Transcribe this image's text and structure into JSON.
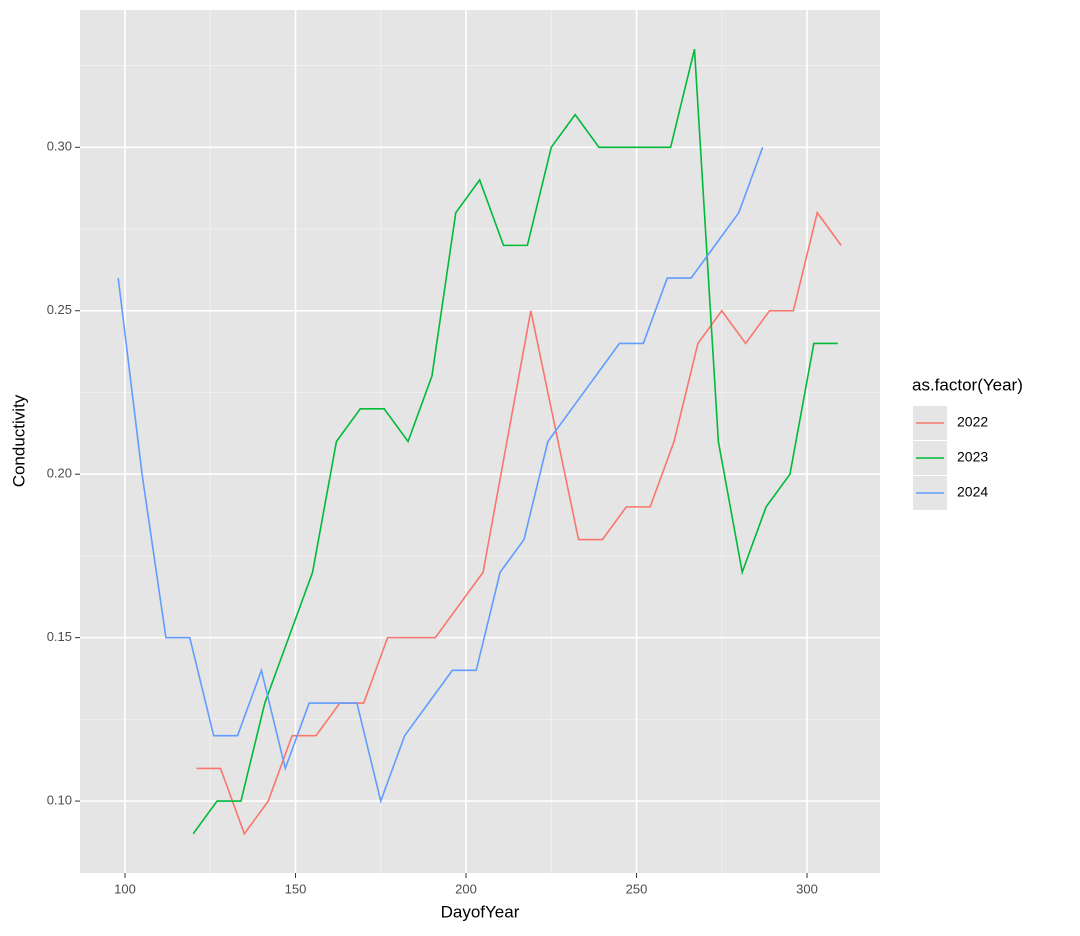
{
  "chart_data": {
    "type": "line",
    "x_label": "DayofYear",
    "y_label": "Conductivity",
    "legend_title": "as.factor(Year)",
    "legend_position": "right",
    "xlim": [
      86.8,
      321.4
    ],
    "ylim": [
      0.078,
      0.342
    ],
    "xticks": [
      100,
      150,
      200,
      250,
      300
    ],
    "yticks": [
      {
        "value": 0.1,
        "label": "0.10"
      },
      {
        "value": 0.15,
        "label": "0.15"
      },
      {
        "value": 0.2,
        "label": "0.20"
      },
      {
        "value": 0.25,
        "label": "0.25"
      },
      {
        "value": 0.3,
        "label": "0.30"
      }
    ],
    "xminor": [
      125,
      175,
      225,
      275
    ],
    "yminor": [
      0.125,
      0.175,
      0.225,
      0.275,
      0.325
    ],
    "grid": true,
    "series": [
      {
        "name": "2022",
        "color": "#f8766d",
        "x": [
          121,
          128,
          135,
          142,
          149,
          156,
          163,
          170,
          177,
          184,
          191,
          198,
          205,
          219,
          233,
          240,
          247,
          254,
          261,
          268,
          275,
          282,
          289,
          296,
          303,
          310
        ],
        "values": [
          0.11,
          0.11,
          0.09,
          0.1,
          0.12,
          0.12,
          0.13,
          0.13,
          0.15,
          0.15,
          0.15,
          0.16,
          0.17,
          0.25,
          0.18,
          0.18,
          0.19,
          0.19,
          0.21,
          0.24,
          0.25,
          0.24,
          0.25,
          0.25,
          0.28,
          0.27
        ]
      },
      {
        "name": "2023",
        "color": "#00ba38",
        "x": [
          120,
          127,
          134,
          141,
          148,
          155,
          162,
          169,
          176,
          183,
          190,
          197,
          204,
          211,
          218,
          225,
          232,
          239,
          246,
          253,
          260,
          267,
          274,
          281,
          288,
          295,
          302,
          309
        ],
        "values": [
          0.09,
          0.1,
          0.1,
          0.13,
          0.15,
          0.17,
          0.21,
          0.22,
          0.22,
          0.21,
          0.23,
          0.28,
          0.29,
          0.27,
          0.27,
          0.3,
          0.31,
          0.3,
          0.3,
          0.3,
          0.3,
          0.33,
          0.21,
          0.17,
          0.19,
          0.2,
          0.24,
          0.24
        ]
      },
      {
        "name": "2024",
        "color": "#619cff",
        "x": [
          98,
          105,
          112,
          119,
          126,
          133,
          140,
          147,
          154,
          161,
          168,
          175,
          182,
          189,
          196,
          203,
          210,
          217,
          224,
          231,
          238,
          245,
          252,
          259,
          266,
          273,
          280,
          287
        ],
        "values": [
          0.26,
          0.2,
          0.15,
          0.15,
          0.12,
          0.12,
          0.14,
          0.11,
          0.13,
          0.13,
          0.13,
          0.1,
          0.12,
          0.13,
          0.14,
          0.14,
          0.17,
          0.18,
          0.21,
          0.22,
          0.23,
          0.24,
          0.24,
          0.26,
          0.26,
          0.27,
          0.28,
          0.3
        ]
      }
    ]
  }
}
